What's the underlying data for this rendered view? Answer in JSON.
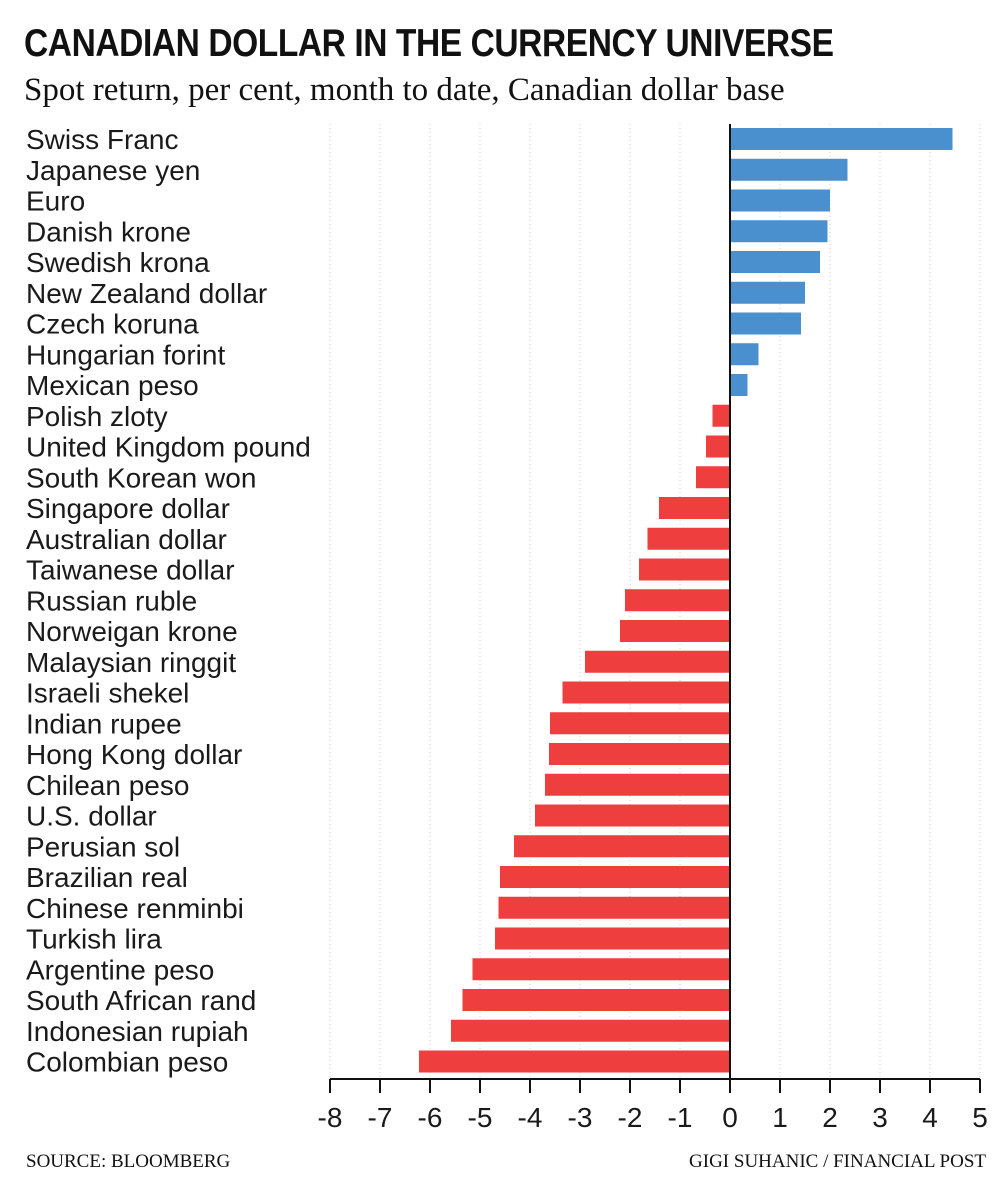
{
  "title": "CANADIAN DOLLAR IN THE CURRENCY UNIVERSE",
  "subtitle": "Spot return, per cent, month to date, Canadian dollar base",
  "source": "SOURCE: BLOOMBERG",
  "credit": "GIGI SUHANIC / FINANCIAL POST",
  "colors": {
    "positive": "#4a8fce",
    "negative": "#ee3e3e",
    "axis": "#111111",
    "grid": "#cccccc"
  },
  "chart_data": {
    "type": "bar",
    "orientation": "horizontal",
    "categories": [
      "Swiss Franc",
      "Japanese yen",
      "Euro",
      "Danish krone",
      "Swedish krona",
      "New Zealand dollar",
      "Czech koruna",
      "Hungarian forint",
      "Mexican peso",
      "Polish zloty",
      "United Kingdom pound",
      "South Korean won",
      "Singapore dollar",
      "Australian dollar",
      "Taiwanese dollar",
      "Russian ruble",
      "Norweigan krone",
      "Malaysian ringgit",
      "Israeli shekel",
      "Indian rupee",
      "Hong Kong dollar",
      "Chilean peso",
      "U.S. dollar",
      "Perusian sol",
      "Brazilian real",
      "Chinese renminbi",
      "Turkish lira",
      "Argentine peso",
      "South African rand",
      "Indonesian rupiah",
      "Colombian peso"
    ],
    "values": [
      4.45,
      2.35,
      2.0,
      1.95,
      1.8,
      1.5,
      1.42,
      0.57,
      0.35,
      -0.35,
      -0.48,
      -0.68,
      -1.42,
      -1.65,
      -1.82,
      -2.1,
      -2.2,
      -2.9,
      -3.35,
      -3.6,
      -3.62,
      -3.7,
      -3.9,
      -4.32,
      -4.6,
      -4.63,
      -4.7,
      -5.15,
      -5.35,
      -5.58,
      -6.22
    ],
    "xlim": [
      -8,
      5
    ],
    "xticks": [
      "-8",
      "-7",
      "-6",
      "-5",
      "-4",
      "-3",
      "-2",
      "-1",
      "0",
      "1",
      "2",
      "3",
      "4",
      "5"
    ],
    "grid": "vertical-dotted",
    "xlabel": "",
    "ylabel": ""
  }
}
